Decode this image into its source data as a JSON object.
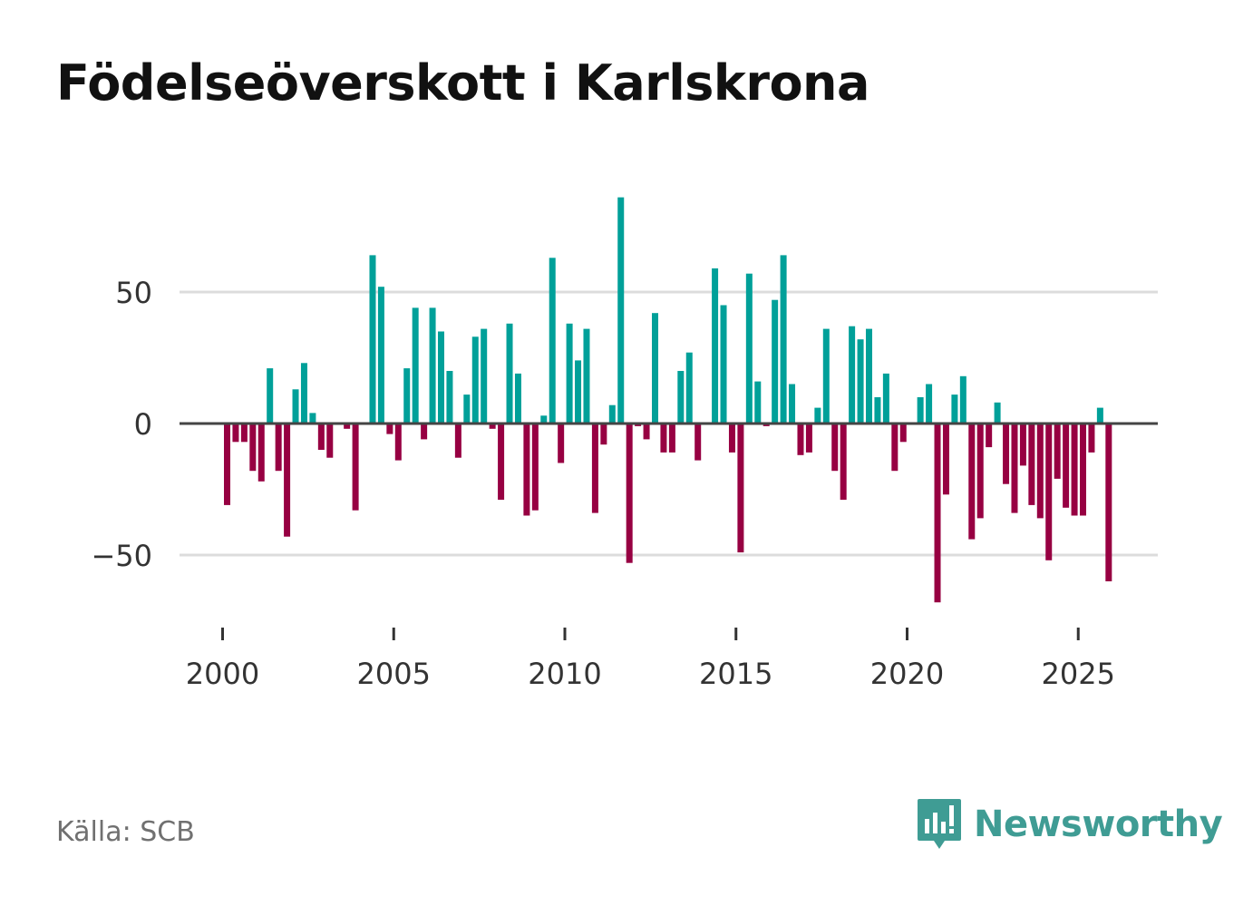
{
  "colors": {
    "positive": "#00a099",
    "negative": "#970042",
    "grid": "#dcdcdc",
    "zero_line": "#444444",
    "brand": "#3f9c94"
  },
  "chart_data": {
    "type": "bar",
    "title": "Födelseöverskott i Karlskrona",
    "xlabel": "",
    "ylabel": "",
    "source": "Källa: SCB",
    "period": "quarterly",
    "start": "2000 Q1",
    "x_ticks": [
      "2000",
      "2005",
      "2010",
      "2015",
      "2020",
      "2025"
    ],
    "y_ticks": [
      {
        "value": 50,
        "label": "50"
      },
      {
        "value": 0,
        "label": "0"
      },
      {
        "value": -50,
        "label": "−50"
      }
    ],
    "ylim": [
      -80,
      90
    ],
    "values": [
      -31,
      -7,
      -7,
      -18,
      -22,
      21,
      -18,
      -43,
      13,
      23,
      4,
      -10,
      -13,
      0,
      -2,
      -33,
      0,
      64,
      52,
      -4,
      -14,
      21,
      44,
      -6,
      44,
      35,
      20,
      -13,
      11,
      33,
      36,
      -2,
      -29,
      38,
      19,
      -35,
      -33,
      3,
      63,
      -15,
      38,
      24,
      36,
      -34,
      -8,
      7,
      86,
      -53,
      -1,
      -6,
      42,
      -11,
      -11,
      20,
      27,
      -14,
      0,
      59,
      45,
      -11,
      -49,
      57,
      16,
      -1,
      47,
      64,
      15,
      -12,
      -11,
      6,
      36,
      -18,
      -29,
      37,
      32,
      36,
      10,
      19,
      -18,
      -7,
      0,
      10,
      15,
      -68,
      -27,
      11,
      18,
      -44,
      -36,
      -9,
      8,
      -23,
      -34,
      -16,
      -31,
      -36,
      -52,
      -21,
      -32,
      -35,
      -35,
      -11,
      6,
      -60
    ]
  },
  "branding": {
    "name": "Newsworthy"
  }
}
